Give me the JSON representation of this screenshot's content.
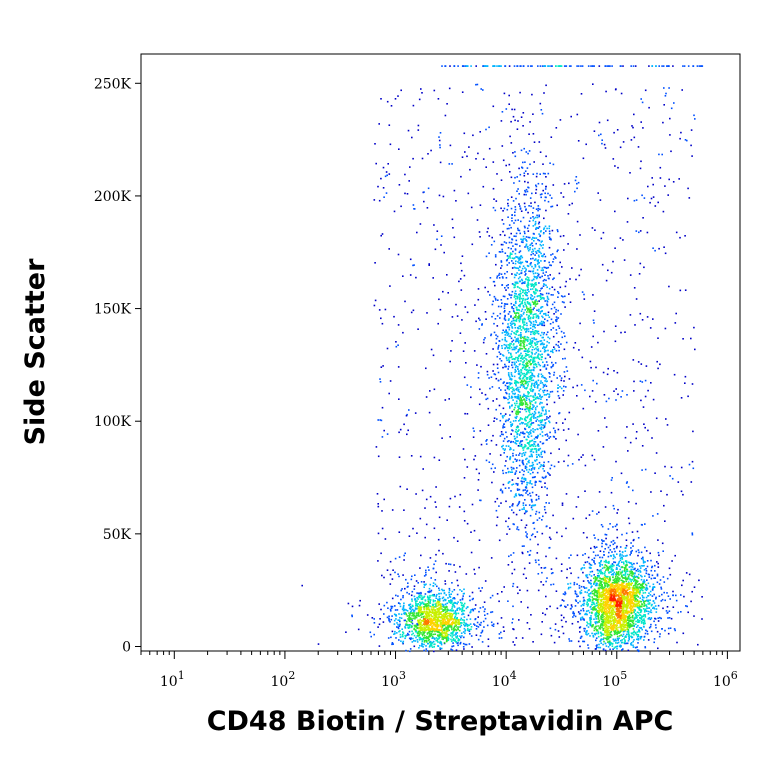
{
  "chart_data": {
    "type": "scatter",
    "title": "",
    "xlabel": "CD48 Biotin / Streptavidin APC",
    "ylabel": "Side Scatter",
    "x_scale": "log",
    "xlim": [
      5,
      1300000
    ],
    "ylim": [
      -2000,
      263000
    ],
    "x_ticks": [
      {
        "value": 10,
        "base": "10",
        "exp": "1"
      },
      {
        "value": 100,
        "base": "10",
        "exp": "2"
      },
      {
        "value": 1000,
        "base": "10",
        "exp": "3"
      },
      {
        "value": 10000,
        "base": "10",
        "exp": "4"
      },
      {
        "value": 100000,
        "base": "10",
        "exp": "5"
      },
      {
        "value": 1000000,
        "base": "10",
        "exp": "6"
      }
    ],
    "y_ticks": [
      {
        "value": 0,
        "label": "0"
      },
      {
        "value": 50000,
        "label": "50K"
      },
      {
        "value": 100000,
        "label": "100K"
      },
      {
        "value": 150000,
        "label": "150K"
      },
      {
        "value": 200000,
        "label": "200K"
      },
      {
        "value": 250000,
        "label": "250K"
      }
    ],
    "grid": false,
    "legend": "none",
    "colormap": [
      "#0000c8",
      "#0050ff",
      "#00b4ff",
      "#00e6c8",
      "#32e632",
      "#c8f000",
      "#ffd200",
      "#ff7800",
      "#ff1e00"
    ],
    "populations": [
      {
        "name": "",
        "x_center": 2200,
        "y_center": 12000,
        "x_spread_log10": 0.16,
        "y_spread": 6000,
        "density": "high"
      },
      {
        "name": "",
        "x_center": 15000,
        "y_center": 130000,
        "x_spread_log10": 0.12,
        "y_spread": 38000,
        "density": "medium"
      },
      {
        "name": "",
        "x_center": 100000,
        "y_center": 20000,
        "x_spread_log10": 0.14,
        "y_spread": 9000,
        "density": "very-high"
      }
    ]
  }
}
